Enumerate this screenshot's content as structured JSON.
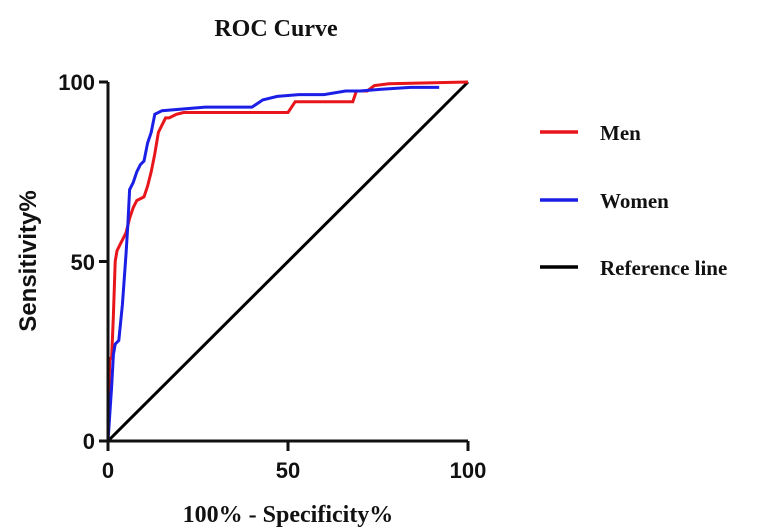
{
  "chart_data": {
    "type": "line",
    "title": "ROC Curve",
    "xlabel": "100% - Specificity%",
    "ylabel": "Sensitivity%",
    "xlim": [
      0,
      100
    ],
    "ylim": [
      0,
      100
    ],
    "xticks": [
      "0",
      "50",
      "100"
    ],
    "yticks": [
      "0",
      "50",
      "100"
    ],
    "grid": false,
    "legend_position": "right",
    "series": [
      {
        "name": "Men",
        "color": "#e8151b",
        "x": [
          0,
          0,
          0.5,
          1.0,
          1.5,
          2.0,
          2.5,
          3.0,
          5.0,
          6.0,
          7.0,
          8.0,
          10.0,
          11.0,
          12.0,
          13.0,
          14.0,
          15.0,
          16.0,
          17.0,
          19.0,
          21.0,
          50.0,
          52.0,
          68.0,
          69.0,
          72.0,
          74.0,
          78.0,
          100.0
        ],
        "y": [
          0,
          5,
          23,
          23,
          35,
          50,
          53,
          54,
          58,
          62,
          65,
          67,
          68,
          71,
          75,
          80,
          86,
          88,
          90,
          90,
          91,
          91.5,
          91.5,
          94.5,
          94.5,
          97.5,
          97.5,
          99,
          99.5,
          100
        ]
      },
      {
        "name": "Women",
        "color": "#1b1fe6",
        "x": [
          0,
          1.0,
          1.5,
          2.0,
          3.0,
          4.0,
          5.0,
          5.5,
          6.0,
          7.0,
          8.0,
          9.0,
          10.0,
          11.0,
          12.0,
          13.0,
          15.0,
          27.0,
          40.0,
          43.0,
          47.0,
          53.0,
          60.0,
          66.0,
          70.0,
          76.0,
          84.0,
          92.0
        ],
        "y": [
          0,
          15,
          24,
          27,
          28,
          38,
          52,
          60,
          70,
          72,
          75,
          77,
          78,
          83,
          86,
          91,
          92,
          93,
          93,
          95,
          96,
          96.5,
          96.5,
          97.5,
          97.5,
          98,
          98.5,
          98.5
        ]
      },
      {
        "name": "Reference line",
        "color": "#000000",
        "x": [
          0,
          100
        ],
        "y": [
          0,
          100
        ]
      }
    ]
  }
}
